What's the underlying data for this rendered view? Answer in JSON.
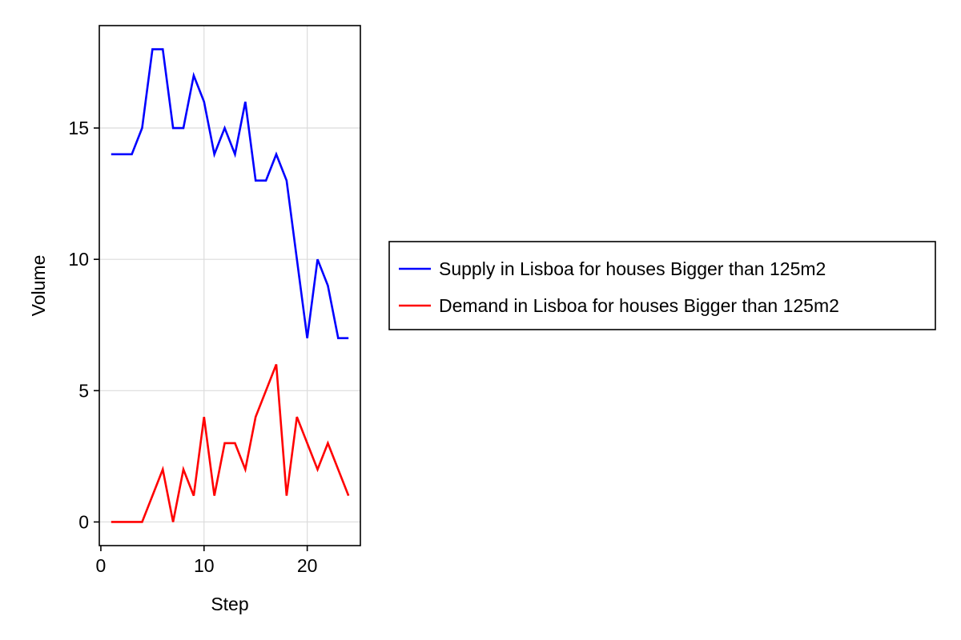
{
  "chart_data": {
    "type": "line",
    "xlabel": "Step",
    "ylabel": "Volume",
    "xlim": [
      -0.15,
      25.15
    ],
    "ylim": [
      -0.9,
      18.9
    ],
    "x_ticks": [
      0,
      10,
      20
    ],
    "y_ticks": [
      0,
      5,
      10,
      15
    ],
    "x_tick_labels": [
      "0",
      "10",
      "20"
    ],
    "y_tick_labels": [
      "0",
      "5",
      "10",
      "15"
    ],
    "grid": true,
    "legend_placement": "right",
    "x": [
      1,
      2,
      3,
      4,
      5,
      6,
      7,
      8,
      9,
      10,
      11,
      12,
      13,
      14,
      15,
      16,
      17,
      18,
      19,
      20,
      21,
      22,
      23,
      24
    ],
    "series": [
      {
        "name": "Supply in Lisboa for houses Bigger than 125m2",
        "color": "#0000ff",
        "values": [
          14,
          14,
          14,
          15,
          18,
          18,
          15,
          15,
          17,
          16,
          14,
          15,
          14,
          16,
          13,
          13,
          14,
          13,
          10,
          7,
          10,
          9,
          7,
          7
        ]
      },
      {
        "name": "Demand in Lisboa for houses Bigger than 125m2",
        "color": "#ff0000",
        "values": [
          0,
          0,
          0,
          0,
          1,
          2,
          0,
          2,
          1,
          4,
          1,
          3,
          3,
          2,
          4,
          5,
          6,
          1,
          4,
          3,
          2,
          3,
          2,
          1
        ]
      }
    ]
  }
}
